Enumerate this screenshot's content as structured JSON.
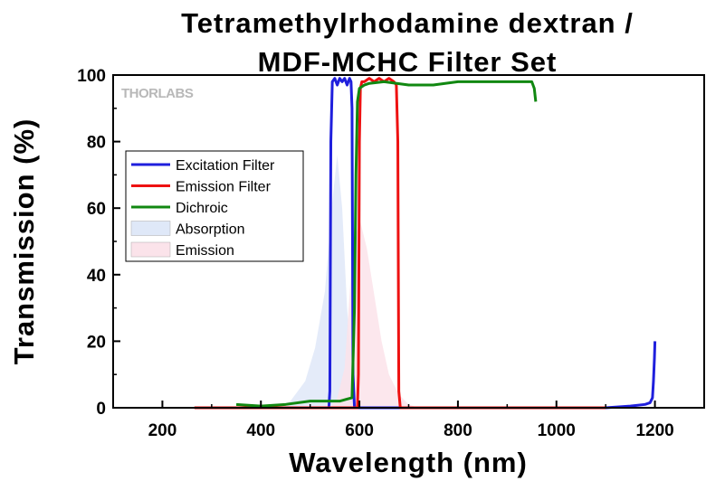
{
  "chart_data": {
    "type": "line",
    "title_lines": [
      "Tetramethylrhodamine dextran /",
      "MDF-MCHC Filter Set"
    ],
    "xlabel": "Wavelength (nm)",
    "ylabel": "Transmission (%)",
    "xlim": [
      100,
      1300
    ],
    "ylim": [
      0,
      100
    ],
    "xticks": [
      200,
      400,
      600,
      800,
      1000,
      1200
    ],
    "yticks": [
      0,
      20,
      40,
      60,
      80,
      100
    ],
    "grid": false,
    "legend_position": "upper-left",
    "watermark": "THORLABS",
    "series": [
      {
        "name": "Excitation Filter",
        "color": "#1f1fdd",
        "kind": "line",
        "x": [
          350,
          538,
          540,
          542,
          545,
          550,
          555,
          560,
          565,
          570,
          575,
          580,
          583,
          585,
          587,
          590,
          600,
          700,
          800,
          900,
          1000,
          1100,
          1150,
          1180,
          1190,
          1195,
          1197,
          1199,
          1200
        ],
        "y": [
          0,
          0,
          5,
          80,
          98,
          99,
          97,
          99,
          98,
          99,
          97,
          99,
          98,
          90,
          10,
          0,
          0,
          0,
          0,
          0,
          0,
          0,
          0.5,
          1,
          1.5,
          3,
          8,
          15,
          20
        ]
      },
      {
        "name": "Emission Filter",
        "color": "#ee1111",
        "kind": "line",
        "x": [
          265,
          400,
          500,
          596,
          598,
          600,
          602,
          605,
          610,
          620,
          630,
          640,
          650,
          660,
          670,
          675,
          678,
          680,
          683,
          690,
          800,
          1000,
          1100
        ],
        "y": [
          0,
          0,
          0,
          0,
          10,
          80,
          96,
          98,
          98,
          99,
          98,
          99,
          98,
          99,
          98,
          97,
          80,
          5,
          0,
          0,
          0,
          0,
          0
        ]
      },
      {
        "name": "Dichroic",
        "color": "#118811",
        "kind": "line",
        "x": [
          350,
          400,
          450,
          500,
          530,
          560,
          585,
          590,
          593,
          596,
          600,
          610,
          620,
          650,
          700,
          750,
          800,
          850,
          900,
          950,
          955,
          958
        ],
        "y": [
          1,
          0.5,
          1,
          2,
          2,
          2,
          3,
          30,
          70,
          92,
          96,
          97,
          97.5,
          98,
          97,
          97,
          98,
          98,
          98,
          98,
          96,
          92
        ]
      },
      {
        "name": "Absorption",
        "color": "#dfe8f8",
        "kind": "area",
        "x": [
          430,
          460,
          490,
          510,
          530,
          545,
          555,
          565,
          575,
          585,
          595,
          605
        ],
        "y": [
          0,
          2,
          8,
          18,
          35,
          62,
          76,
          60,
          30,
          10,
          2,
          0
        ]
      },
      {
        "name": "Emission",
        "color": "#fbe3ea",
        "kind": "area",
        "x": [
          540,
          555,
          570,
          585,
          600,
          615,
          630,
          645,
          660,
          680,
          700,
          720
        ],
        "y": [
          0,
          3,
          12,
          45,
          57,
          48,
          34,
          20,
          10,
          4,
          1,
          0
        ]
      }
    ]
  }
}
